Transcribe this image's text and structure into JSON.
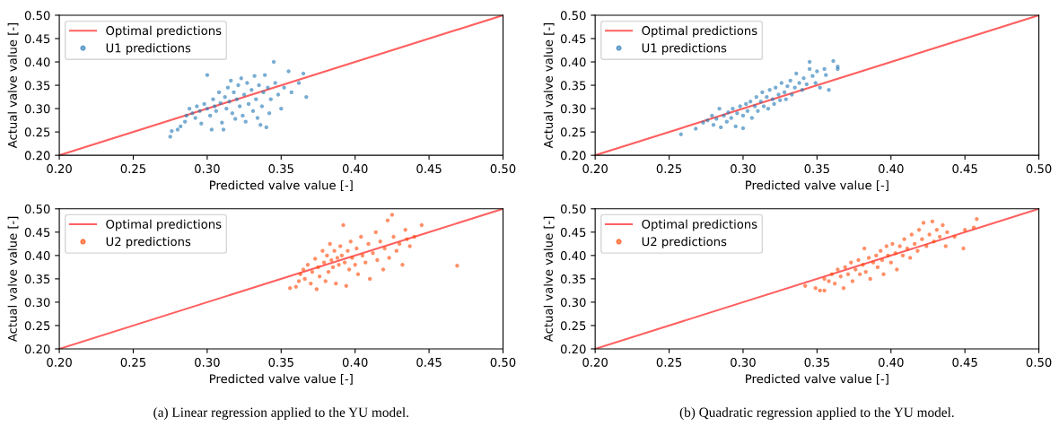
{
  "chart_data": [
    {
      "type": "scatter",
      "xlabel": "Predicted valve value [-]",
      "ylabel": "Actual valve value [-]",
      "xlim": [
        0.2,
        0.5
      ],
      "ylim": [
        0.2,
        0.5
      ],
      "xticks": [
        {
          "value": 0.2,
          "label": "0.20"
        },
        0.25,
        {
          "value": 0.3,
          "label": "0.30"
        },
        0.35,
        {
          "value": 0.4,
          "label": "0.40"
        },
        0.45,
        {
          "value": 0.5,
          "label": "0.50"
        }
      ],
      "yticks": [
        {
          "value": 0.2,
          "label": "0.20"
        },
        0.25,
        {
          "value": 0.3,
          "label": "0.30"
        },
        0.35,
        {
          "value": 0.4,
          "label": "0.40"
        },
        0.45,
        {
          "value": 0.5,
          "label": "0.50"
        }
      ],
      "legend": "top left",
      "series": [
        {
          "name": "Optimal predictions",
          "type": "line",
          "color": "#ff6060",
          "x": [
            0.2,
            0.5
          ],
          "values": [
            0.2,
            0.5
          ]
        },
        {
          "name": "U1 predictions",
          "marker": "circle",
          "color": "#1f77b4",
          "x": [
            0.275,
            0.276,
            0.28,
            0.282,
            0.285,
            0.286,
            0.288,
            0.29,
            0.292,
            0.293,
            0.295,
            0.296,
            0.298,
            0.3,
            0.3,
            0.302,
            0.303,
            0.304,
            0.305,
            0.306,
            0.308,
            0.309,
            0.31,
            0.311,
            0.312,
            0.313,
            0.314,
            0.315,
            0.316,
            0.317,
            0.318,
            0.319,
            0.32,
            0.321,
            0.322,
            0.323,
            0.324,
            0.325,
            0.326,
            0.327,
            0.328,
            0.33,
            0.331,
            0.332,
            0.333,
            0.334,
            0.335,
            0.336,
            0.337,
            0.338,
            0.339,
            0.34,
            0.341,
            0.342,
            0.343,
            0.345,
            0.346,
            0.348,
            0.35,
            0.352,
            0.355,
            0.357,
            0.362,
            0.365,
            0.367
          ],
          "values": [
            0.24,
            0.252,
            0.255,
            0.262,
            0.272,
            0.285,
            0.3,
            0.29,
            0.28,
            0.305,
            0.295,
            0.268,
            0.31,
            0.3,
            0.372,
            0.285,
            0.255,
            0.32,
            0.305,
            0.295,
            0.335,
            0.312,
            0.27,
            0.255,
            0.325,
            0.3,
            0.345,
            0.315,
            0.36,
            0.29,
            0.335,
            0.278,
            0.32,
            0.35,
            0.305,
            0.365,
            0.285,
            0.33,
            0.272,
            0.355,
            0.31,
            0.34,
            0.295,
            0.37,
            0.32,
            0.28,
            0.35,
            0.265,
            0.305,
            0.335,
            0.372,
            0.26,
            0.345,
            0.29,
            0.32,
            0.4,
            0.355,
            0.33,
            0.3,
            0.345,
            0.38,
            0.335,
            0.355,
            0.375,
            0.325
          ]
        }
      ]
    },
    {
      "type": "scatter",
      "xlabel": "Predicted valve value [-]",
      "ylabel": "Actual valve value [-]",
      "xlim": [
        0.2,
        0.5
      ],
      "ylim": [
        0.2,
        0.5
      ],
      "xticks": [
        {
          "value": 0.2,
          "label": "0.20"
        },
        0.25,
        {
          "value": 0.3,
          "label": "0.30"
        },
        0.35,
        {
          "value": 0.4,
          "label": "0.40"
        },
        0.45,
        {
          "value": 0.5,
          "label": "0.50"
        }
      ],
      "yticks": [
        {
          "value": 0.2,
          "label": "0.20"
        },
        0.25,
        {
          "value": 0.3,
          "label": "0.30"
        },
        0.35,
        {
          "value": 0.4,
          "label": "0.40"
        },
        0.45,
        {
          "value": 0.5,
          "label": "0.50"
        }
      ],
      "legend": "top left",
      "series": [
        {
          "name": "Optimal predictions",
          "type": "line",
          "color": "#ff6060",
          "x": [
            0.2,
            0.5
          ],
          "values": [
            0.2,
            0.5
          ]
        },
        {
          "name": "U1 predictions",
          "marker": "circle",
          "color": "#1f77b4",
          "x": [
            0.258,
            0.268,
            0.273,
            0.276,
            0.279,
            0.28,
            0.282,
            0.284,
            0.285,
            0.287,
            0.289,
            0.29,
            0.292,
            0.293,
            0.295,
            0.296,
            0.298,
            0.3,
            0.3,
            0.302,
            0.303,
            0.305,
            0.306,
            0.308,
            0.309,
            0.31,
            0.312,
            0.313,
            0.314,
            0.316,
            0.317,
            0.318,
            0.32,
            0.321,
            0.322,
            0.324,
            0.325,
            0.326,
            0.328,
            0.329,
            0.33,
            0.332,
            0.333,
            0.335,
            0.336,
            0.338,
            0.34,
            0.341,
            0.343,
            0.345,
            0.345,
            0.347,
            0.349,
            0.35,
            0.352,
            0.355,
            0.356,
            0.358,
            0.361,
            0.364,
            0.364
          ],
          "values": [
            0.245,
            0.257,
            0.27,
            0.275,
            0.285,
            0.265,
            0.278,
            0.3,
            0.26,
            0.285,
            0.272,
            0.292,
            0.28,
            0.3,
            0.262,
            0.29,
            0.305,
            0.285,
            0.258,
            0.31,
            0.295,
            0.315,
            0.28,
            0.305,
            0.325,
            0.295,
            0.315,
            0.335,
            0.305,
            0.325,
            0.3,
            0.34,
            0.32,
            0.31,
            0.345,
            0.33,
            0.318,
            0.355,
            0.335,
            0.32,
            0.348,
            0.36,
            0.33,
            0.345,
            0.375,
            0.355,
            0.34,
            0.365,
            0.352,
            0.385,
            0.4,
            0.37,
            0.355,
            0.38,
            0.345,
            0.385,
            0.372,
            0.34,
            0.402,
            0.39,
            0.385
          ]
        }
      ]
    },
    {
      "type": "scatter",
      "xlabel": "Predicted valve value [-]",
      "ylabel": "Actual valve value [-]",
      "xlim": [
        0.2,
        0.5
      ],
      "ylim": [
        0.2,
        0.5
      ],
      "xticks": [
        {
          "value": 0.2,
          "label": "0.20"
        },
        0.25,
        {
          "value": 0.3,
          "label": "0.30"
        },
        0.35,
        {
          "value": 0.4,
          "label": "0.40"
        },
        0.45,
        {
          "value": 0.5,
          "label": "0.50"
        }
      ],
      "yticks": [
        {
          "value": 0.2,
          "label": "0.20"
        },
        0.25,
        {
          "value": 0.3,
          "label": "0.30"
        },
        0.35,
        {
          "value": 0.4,
          "label": "0.40"
        },
        0.45,
        {
          "value": 0.5,
          "label": "0.50"
        }
      ],
      "legend": "top left",
      "annotations": [
        "(a) Linear regression applied to the YU model."
      ],
      "series": [
        {
          "name": "Optimal predictions",
          "type": "line",
          "color": "#ff6060",
          "x": [
            0.2,
            0.5
          ],
          "values": [
            0.2,
            0.5
          ]
        },
        {
          "name": "U2 predictions",
          "marker": "circle",
          "color": "#ff4500",
          "x": [
            0.356,
            0.36,
            0.362,
            0.363,
            0.365,
            0.366,
            0.368,
            0.37,
            0.371,
            0.373,
            0.374,
            0.375,
            0.376,
            0.378,
            0.379,
            0.38,
            0.381,
            0.382,
            0.383,
            0.384,
            0.385,
            0.386,
            0.387,
            0.388,
            0.389,
            0.39,
            0.391,
            0.392,
            0.393,
            0.394,
            0.395,
            0.396,
            0.397,
            0.398,
            0.4,
            0.401,
            0.402,
            0.404,
            0.405,
            0.407,
            0.409,
            0.41,
            0.412,
            0.414,
            0.415,
            0.417,
            0.419,
            0.42,
            0.422,
            0.423,
            0.425,
            0.426,
            0.428,
            0.43,
            0.432,
            0.434,
            0.435,
            0.437,
            0.44,
            0.445,
            0.469
          ],
          "values": [
            0.33,
            0.333,
            0.345,
            0.36,
            0.37,
            0.35,
            0.38,
            0.34,
            0.365,
            0.393,
            0.328,
            0.375,
            0.355,
            0.41,
            0.385,
            0.345,
            0.4,
            0.365,
            0.425,
            0.39,
            0.375,
            0.41,
            0.34,
            0.395,
            0.38,
            0.42,
            0.4,
            0.465,
            0.385,
            0.335,
            0.41,
            0.37,
            0.43,
            0.395,
            0.38,
            0.415,
            0.36,
            0.44,
            0.4,
            0.385,
            0.425,
            0.35,
            0.405,
            0.45,
            0.39,
            0.43,
            0.37,
            0.415,
            0.475,
            0.395,
            0.487,
            0.44,
            0.41,
            0.425,
            0.38,
            0.455,
            0.435,
            0.42,
            0.44,
            0.465,
            0.378
          ]
        }
      ]
    },
    {
      "type": "scatter",
      "xlabel": "Predicted valve value [-]",
      "ylabel": "Actual valve value [-]",
      "xlim": [
        0.2,
        0.5
      ],
      "ylim": [
        0.2,
        0.5
      ],
      "xticks": [
        {
          "value": 0.2,
          "label": "0.20"
        },
        0.25,
        {
          "value": 0.3,
          "label": "0.30"
        },
        0.35,
        {
          "value": 0.4,
          "label": "0.40"
        },
        0.45,
        {
          "value": 0.5,
          "label": "0.50"
        }
      ],
      "yticks": [
        {
          "value": 0.2,
          "label": "0.20"
        },
        0.25,
        {
          "value": 0.3,
          "label": "0.30"
        },
        0.35,
        {
          "value": 0.4,
          "label": "0.40"
        },
        0.45,
        {
          "value": 0.5,
          "label": "0.50"
        }
      ],
      "legend": "top left",
      "annotations": [
        "(b) Quadratic regression applied to the YU model."
      ],
      "series": [
        {
          "name": "Optimal predictions",
          "type": "line",
          "color": "#ff6060",
          "x": [
            0.2,
            0.5
          ],
          "values": [
            0.2,
            0.5
          ]
        },
        {
          "name": "U2 predictions",
          "marker": "circle",
          "color": "#ff4500",
          "x": [
            0.342,
            0.349,
            0.352,
            0.355,
            0.355,
            0.358,
            0.36,
            0.362,
            0.364,
            0.366,
            0.368,
            0.369,
            0.371,
            0.373,
            0.374,
            0.376,
            0.378,
            0.379,
            0.381,
            0.382,
            0.383,
            0.385,
            0.386,
            0.388,
            0.39,
            0.391,
            0.393,
            0.394,
            0.395,
            0.397,
            0.398,
            0.4,
            0.401,
            0.403,
            0.404,
            0.406,
            0.408,
            0.409,
            0.411,
            0.413,
            0.414,
            0.416,
            0.418,
            0.419,
            0.421,
            0.422,
            0.424,
            0.426,
            0.428,
            0.429,
            0.431,
            0.433,
            0.435,
            0.437,
            0.438,
            0.443,
            0.449,
            0.45,
            0.456,
            0.458
          ],
          "values": [
            0.335,
            0.33,
            0.325,
            0.325,
            0.35,
            0.345,
            0.36,
            0.34,
            0.37,
            0.355,
            0.33,
            0.375,
            0.36,
            0.385,
            0.345,
            0.37,
            0.39,
            0.36,
            0.38,
            0.415,
            0.365,
            0.395,
            0.35,
            0.385,
            0.4,
            0.375,
            0.41,
            0.39,
            0.36,
            0.42,
            0.4,
            0.385,
            0.425,
            0.405,
            0.37,
            0.42,
            0.4,
            0.435,
            0.415,
            0.395,
            0.445,
            0.425,
            0.41,
            0.455,
            0.435,
            0.47,
            0.42,
            0.445,
            0.473,
            0.43,
            0.455,
            0.44,
            0.465,
            0.42,
            0.45,
            0.44,
            0.415,
            0.455,
            0.46,
            0.478
          ]
        }
      ]
    }
  ]
}
